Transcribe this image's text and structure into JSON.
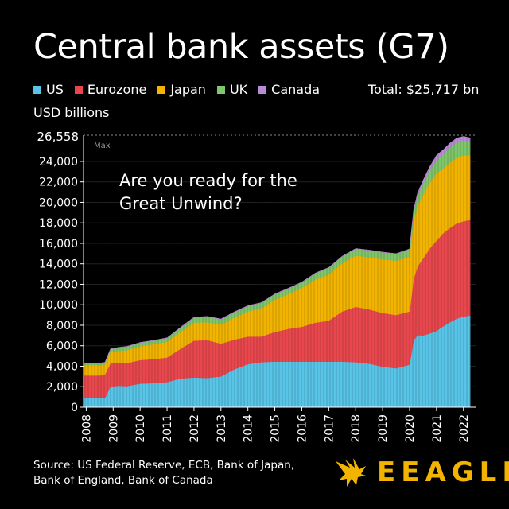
{
  "header": {
    "title": "Central bank assets (G7)",
    "total_label": "Total: $25,717 bn",
    "unit_label": "USD billions"
  },
  "legend": [
    {
      "name": "US",
      "color": "#57c4e8"
    },
    {
      "name": "Eurozone",
      "color": "#e8474e"
    },
    {
      "name": "Japan",
      "color": "#f2b400"
    },
    {
      "name": "UK",
      "color": "#7dc66a"
    },
    {
      "name": "Canada",
      "color": "#b98ad8"
    }
  ],
  "annotation": {
    "line1": "Are you ready for the",
    "line2": "Great Unwind?"
  },
  "max_label": {
    "value": "26,558",
    "tag": "Max"
  },
  "footer": {
    "source_line1": "Source: US Federal Reserve, ECB, Bank of Japan,",
    "source_line2": "Bank of England, Bank of Canada",
    "logo_text": "EEAGLI",
    "logo_icon": "eagle-icon"
  },
  "chart_data": {
    "type": "area",
    "stacked": true,
    "title": "Central bank assets (G7)",
    "ylabel": "USD billions",
    "ylim": [
      0,
      26558
    ],
    "yticks": [
      0,
      2000,
      4000,
      6000,
      8000,
      10000,
      12000,
      14000,
      16000,
      18000,
      20000,
      22000,
      24000
    ],
    "xticks": [
      "2008",
      "2009",
      "2010",
      "2011",
      "2012",
      "2013",
      "2014",
      "2015",
      "2016",
      "2017",
      "2018",
      "2019",
      "2020",
      "2021",
      "2022"
    ],
    "x": [
      2007.9,
      2008.5,
      2008.7,
      2008.9,
      2009.2,
      2009.5,
      2010.0,
      2010.5,
      2011.0,
      2011.5,
      2012.0,
      2012.5,
      2013.0,
      2013.5,
      2014.0,
      2014.5,
      2015.0,
      2015.5,
      2016.0,
      2016.5,
      2017.0,
      2017.5,
      2018.0,
      2018.5,
      2019.0,
      2019.5,
      2020.0,
      2020.15,
      2020.3,
      2020.5,
      2020.75,
      2021.0,
      2021.25,
      2021.5,
      2021.75,
      2022.0,
      2022.25
    ],
    "series": [
      {
        "name": "US",
        "values": [
          900,
          900,
          900,
          2000,
          2100,
          2050,
          2300,
          2350,
          2450,
          2800,
          2900,
          2850,
          3000,
          3700,
          4200,
          4400,
          4450,
          4450,
          4450,
          4450,
          4450,
          4450,
          4400,
          4250,
          3950,
          3800,
          4150,
          6500,
          7050,
          7000,
          7200,
          7450,
          7900,
          8300,
          8650,
          8850,
          8950
        ]
      },
      {
        "name": "Eurozone",
        "values": [
          2200,
          2200,
          2300,
          2300,
          2200,
          2250,
          2300,
          2350,
          2400,
          2900,
          3600,
          3700,
          3200,
          2900,
          2700,
          2500,
          2900,
          3200,
          3400,
          3800,
          4000,
          4900,
          5400,
          5300,
          5250,
          5200,
          5200,
          6000,
          6700,
          7500,
          8300,
          8800,
          9100,
          9200,
          9300,
          9300,
          9350
        ]
      },
      {
        "name": "Japan",
        "values": [
          1000,
          1000,
          1000,
          1100,
          1200,
          1250,
          1350,
          1450,
          1550,
          1650,
          1750,
          1750,
          1850,
          2150,
          2450,
          2750,
          3150,
          3400,
          3800,
          4200,
          4500,
          4700,
          5000,
          5100,
          5250,
          5300,
          5350,
          5700,
          5900,
          6200,
          6400,
          6600,
          6300,
          6400,
          6400,
          6450,
          6300
        ]
      },
      {
        "name": "UK",
        "values": [
          150,
          150,
          150,
          250,
          300,
          330,
          330,
          330,
          330,
          400,
          500,
          520,
          520,
          520,
          520,
          520,
          520,
          520,
          520,
          600,
          650,
          650,
          650,
          650,
          650,
          650,
          700,
          900,
          1000,
          1100,
          1200,
          1300,
          1400,
          1450,
          1500,
          1450,
          1350
        ]
      },
      {
        "name": "Canada",
        "values": [
          50,
          50,
          50,
          50,
          50,
          50,
          50,
          50,
          50,
          50,
          50,
          50,
          50,
          50,
          50,
          50,
          50,
          50,
          50,
          50,
          50,
          50,
          50,
          50,
          50,
          50,
          60,
          200,
          300,
          350,
          400,
          450,
          450,
          450,
          430,
          400,
          350
        ]
      }
    ]
  }
}
